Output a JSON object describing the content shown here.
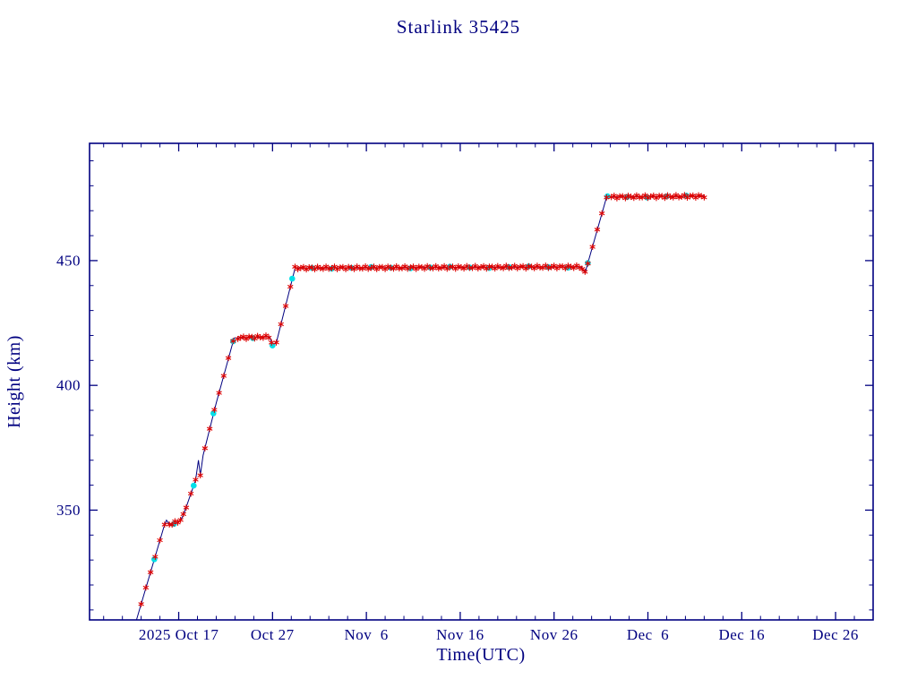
{
  "chart_data": {
    "type": "line",
    "title": "Starlink 35425",
    "xlabel": "Time(UTC)",
    "ylabel": "Height (km)",
    "x_axis": {
      "day0_date": "2025 Oct 17",
      "range_days": [
        -9.5,
        74
      ],
      "major_ticks": [
        {
          "day": 0,
          "label": "2025 Oct 17"
        },
        {
          "day": 10,
          "label": "Oct 27"
        },
        {
          "day": 20,
          "label": "Nov  6"
        },
        {
          "day": 30,
          "label": "Nov 16"
        },
        {
          "day": 40,
          "label": "Nov 26"
        },
        {
          "day": 50,
          "label": "Dec  6"
        },
        {
          "day": 60,
          "label": "Dec 16"
        },
        {
          "day": 70,
          "label": "Dec 26"
        }
      ],
      "minor_tick_step_days": 2
    },
    "y_axis": {
      "range_km": [
        306,
        497
      ],
      "major_ticks": [
        {
          "km": 350,
          "label": "350"
        },
        {
          "km": 400,
          "label": "400"
        },
        {
          "km": 450,
          "label": "450"
        }
      ],
      "minor_tick_step_km": 10
    },
    "line_points_day_km": [
      [
        -4.5,
        306
      ],
      [
        -1.6,
        343
      ],
      [
        -1.3,
        346
      ],
      [
        -0.9,
        344
      ],
      [
        -0.4,
        345
      ],
      [
        0.2,
        346
      ],
      [
        0.5,
        348
      ],
      [
        1.8,
        362
      ],
      [
        2.1,
        370
      ],
      [
        2.3,
        364
      ],
      [
        2.6,
        372
      ],
      [
        4.0,
        393
      ],
      [
        5.9,
        419
      ],
      [
        9.7,
        419.5
      ],
      [
        10.0,
        416
      ],
      [
        10.4,
        417
      ],
      [
        12.4,
        447
      ],
      [
        42.9,
        447.5
      ],
      [
        43.3,
        445
      ],
      [
        45.6,
        475.5
      ],
      [
        56.0,
        475.8
      ]
    ],
    "markers": {
      "red_asterisks": {
        "color": "#dd0000",
        "start_day": -4.0,
        "end_day": 56.0,
        "flat_interval_days": 0.3,
        "steep_interval_days": 0.5,
        "steep_slope_km_per_day": 8,
        "jitter_km": 0.55
      },
      "cyan_dots": {
        "color": "#00dfe8",
        "start_day": -2.6,
        "end_day": 55.6,
        "interval_days": 2.1,
        "jitter_km": 0.3
      }
    },
    "colors": {
      "axis": "#000080",
      "line": "#000080",
      "title": "#000080",
      "background": "#ffffff"
    }
  }
}
